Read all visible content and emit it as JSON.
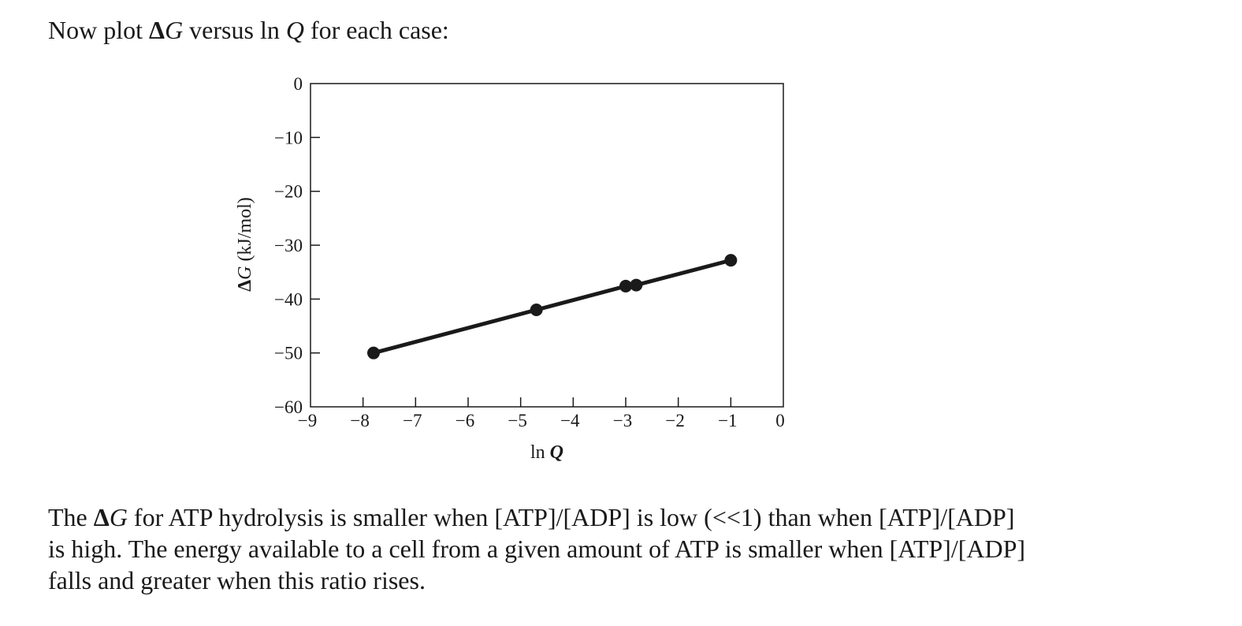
{
  "prompt": {
    "prefix": "Now plot ",
    "delta": "Δ",
    "g": "G",
    "middle": " versus ln ",
    "q": "Q",
    "suffix": " for each case:"
  },
  "chart_data": {
    "type": "line",
    "xlabel_prefix": "ln ",
    "xlabel_var": "Q",
    "ylabel_delta": "Δ",
    "ylabel_var": "G",
    "ylabel_units": " (kJ/mol)",
    "xlim": [
      -9,
      0
    ],
    "ylim": [
      -60,
      0
    ],
    "x_ticks": [
      -9,
      -8,
      -7,
      -6,
      -5,
      -4,
      -3,
      -2,
      -1,
      0
    ],
    "y_ticks": [
      0,
      -10,
      -20,
      -30,
      -40,
      -50,
      -60
    ],
    "x_tick_labels": [
      "−9",
      "−8",
      "−7",
      "−6",
      "−5",
      "−4",
      "−3",
      "−2",
      "−1",
      "0"
    ],
    "y_tick_labels": [
      "0",
      "−10",
      "−20",
      "−30",
      "−40",
      "−50",
      "−60"
    ],
    "series": [
      {
        "x": [
          -7.8,
          -4.7,
          -3.0,
          -2.8,
          -1.0
        ],
        "y": [
          -50.0,
          -42.0,
          -37.6,
          -37.4,
          -32.8
        ],
        "markers": true,
        "color": "#1a1a1a"
      }
    ],
    "grid": false,
    "legend": "none"
  },
  "answer": {
    "line1_a": "The ",
    "line1_delta": "Δ",
    "line1_g": "G",
    "line1_b": " for ATP hydrolysis is smaller when [ATP]/[ADP] is low (<<1) than when [ATP]/[ADP]",
    "line2": "is high. The energy available to a cell from a given amount of ATP is smaller when [ATP]/[ADP]",
    "line3": "falls and greater when this ratio rises."
  }
}
